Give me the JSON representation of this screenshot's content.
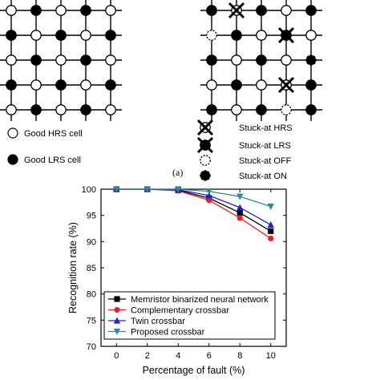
{
  "panel_a": {
    "panel_label": "(a)",
    "left_grid": [
      [
        "HRS",
        "LRS",
        "HRS",
        "LRS",
        "HRS"
      ],
      [
        "LRS",
        "HRS",
        "LRS",
        "HRS",
        "LRS"
      ],
      [
        "HRS",
        "LRS",
        "HRS",
        "LRS",
        "HRS"
      ],
      [
        "LRS",
        "HRS",
        "LRS",
        "HRS",
        "LRS"
      ],
      [
        "HRS",
        "LRS",
        "HRS",
        "LRS",
        "HRS"
      ]
    ],
    "right_grid": [
      [
        "LRS",
        "stuck-hrs",
        "LRS",
        "HRS",
        "LRS"
      ],
      [
        "stuck-off",
        "LRS",
        "HRS",
        "stuck-lrs",
        "HRS"
      ],
      [
        "LRS",
        "HRS",
        "LRS",
        "HRS",
        "stuck-on"
      ],
      [
        "HRS",
        "LRS",
        "HRS",
        "stuck-hrs",
        "LRS"
      ],
      [
        "LRS",
        "HRS",
        "LRS",
        "stuck-off",
        "LRS"
      ]
    ],
    "legend_left": [
      {
        "symbol": "good-hrs-icon",
        "label": "Good HRS cell"
      },
      {
        "symbol": "good-lrs-icon",
        "label": "Good LRS cell"
      }
    ],
    "legend_right": [
      {
        "symbol": "stuck-hrs-icon",
        "label": "Stuck-at HRS"
      },
      {
        "symbol": "stuck-lrs-icon",
        "label": "Stuck-at LRS"
      },
      {
        "symbol": "stuck-off-icon",
        "label": "Stuck-at OFF"
      },
      {
        "symbol": "stuck-on-icon",
        "label": "Stuck-at ON"
      }
    ]
  },
  "chart_data": {
    "type": "line",
    "title": "",
    "xlabel": "Percentage of fault (%)",
    "ylabel": "Recognition rate (%)",
    "x": [
      0,
      2,
      4,
      6,
      8,
      10
    ],
    "xlim": [
      -1,
      11
    ],
    "ylim": [
      70,
      100
    ],
    "yticks": [
      70,
      75,
      80,
      85,
      90,
      95,
      100
    ],
    "legend_position": "bottom-left",
    "grid": false,
    "series": [
      {
        "name": "Memristor binarized neural network",
        "color": "#000000",
        "marker": "square",
        "values": [
          100,
          100,
          99.8,
          98.3,
          95.5,
          92.0
        ]
      },
      {
        "name": "Complementary crossbar",
        "color": "#e8202a",
        "marker": "circle",
        "values": [
          100,
          100,
          99.7,
          97.9,
          94.5,
          90.6
        ]
      },
      {
        "name": "Twin crossbar",
        "color": "#1f1fd6",
        "marker": "triangle-up",
        "values": [
          100,
          100,
          99.9,
          98.8,
          96.5,
          93.2
        ]
      },
      {
        "name": "Proposed crossbar",
        "color": "#2e8b8b",
        "marker": "triangle-down",
        "values": [
          100,
          100,
          100,
          99.6,
          98.6,
          96.7
        ]
      }
    ]
  }
}
